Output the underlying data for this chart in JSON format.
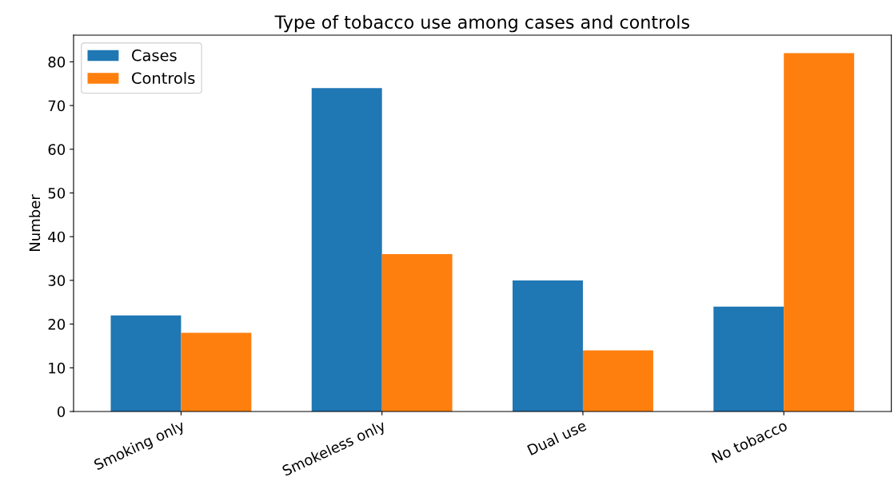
{
  "chart_data": {
    "type": "bar",
    "title": "Type of tobacco use among cases and controls",
    "ylabel": "Number",
    "categories": [
      "Smoking only",
      "Smokeless only",
      "Dual use",
      "No tobacco"
    ],
    "series": [
      {
        "name": "Cases",
        "color": "#1f77b4",
        "values": [
          22,
          74,
          30,
          24
        ]
      },
      {
        "name": "Controls",
        "color": "#ff7f0e",
        "values": [
          18,
          36,
          14,
          82
        ]
      }
    ],
    "ylim": [
      0,
      86.1
    ],
    "yticks": [
      0,
      10,
      20,
      30,
      40,
      50,
      60,
      70,
      80
    ],
    "grid": false,
    "legend": "top left"
  }
}
